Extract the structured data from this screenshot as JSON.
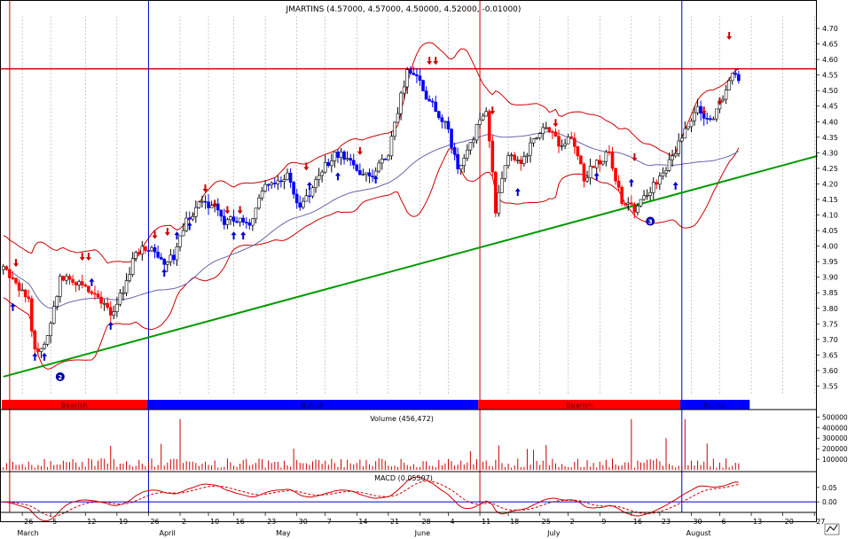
{
  "title": "JMARTINS (4.57000, 4.57000, 4.50000, 4.52000, -0.01000)",
  "volume_label": "Volume (456,472)",
  "macd_label": "MACD (0.05507)",
  "trend_bands": [
    {
      "label": "Bearish",
      "start": 0,
      "end": 46,
      "color": "#ff0000"
    },
    {
      "label": "Bullish",
      "start": 46,
      "end": 151,
      "color": "#0000ff"
    },
    {
      "label": "Bearish",
      "start": 151,
      "end": 215,
      "color": "#ff0000"
    },
    {
      "label": "Bullish",
      "start": 215,
      "end": 237,
      "color": "#0000ff"
    }
  ],
  "price_ticks": [
    "4.70",
    "4.65",
    "4.60",
    "4.55",
    "4.50",
    "4.45",
    "4.40",
    "4.35",
    "4.30",
    "4.25",
    "4.20",
    "4.15",
    "4.10",
    "4.05",
    "4.00",
    "3.95",
    "3.90",
    "3.85",
    "3.80",
    "3.75",
    "3.70",
    "3.65",
    "3.60",
    "3.55"
  ],
  "volume_ticks": [
    "500000",
    "400000",
    "300000",
    "200000",
    "100000"
  ],
  "macd_ticks": [
    "0.05",
    "0.00"
  ],
  "date_ticks": [
    {
      "label": "26",
      "i": 6
    },
    {
      "label": "5",
      "i": 15
    },
    {
      "label": "12",
      "i": 26
    },
    {
      "label": "19",
      "i": 36
    },
    {
      "label": "26",
      "i": 46
    },
    {
      "label": "2",
      "i": 56
    },
    {
      "label": "10",
      "i": 65
    },
    {
      "label": "16",
      "i": 73
    },
    {
      "label": "23",
      "i": 83
    },
    {
      "label": "30",
      "i": 93
    },
    {
      "label": "7",
      "i": 102
    },
    {
      "label": "14",
      "i": 112
    },
    {
      "label": "21",
      "i": 122
    },
    {
      "label": "28",
      "i": 132
    },
    {
      "label": "4",
      "i": 141
    },
    {
      "label": "11",
      "i": 151
    },
    {
      "label": "18",
      "i": 160
    },
    {
      "label": "25",
      "i": 170
    },
    {
      "label": "2",
      "i": 179
    },
    {
      "label": "9",
      "i": 189
    },
    {
      "label": "16",
      "i": 199
    },
    {
      "label": "23",
      "i": 208
    },
    {
      "label": "30",
      "i": 218
    },
    {
      "label": "6",
      "i": 227
    },
    {
      "label": "13",
      "i": 237
    },
    {
      "label": "20",
      "i": 247
    },
    {
      "label": "27",
      "i": 257
    }
  ],
  "month_labels": [
    {
      "label": "March",
      "i": 10
    },
    {
      "label": "April",
      "i": 55
    },
    {
      "label": "May",
      "i": 92
    },
    {
      "label": "June",
      "i": 136
    },
    {
      "label": "July",
      "i": 178
    },
    {
      "label": "August",
      "i": 222
    }
  ],
  "vertical_markers": [
    {
      "i": 2,
      "color": "#cc0000"
    },
    {
      "i": 46,
      "color": "#0000cc"
    },
    {
      "i": 151,
      "color": "#cc0000"
    },
    {
      "i": 215,
      "color": "#0000cc"
    }
  ],
  "resistance_level": 4.57,
  "wave_labels": [
    {
      "label": "2",
      "i": 18,
      "price": 3.58
    },
    {
      "label": "3",
      "i": 205,
      "price": 4.08
    }
  ],
  "colors": {
    "up": "#ffffff",
    "down": "#0000ff",
    "bearish_down": "#ff0000",
    "band": "#cc0000",
    "ma": "#6666aa",
    "trend": "#009900",
    "resistance": "#cc0000",
    "volume": "#cc0000",
    "macd": "#cc0000"
  },
  "chart_data": {
    "type": "candlestick",
    "title": "JMARTINS (4.57000, 4.57000, 4.50000, 4.52000, -0.01000)",
    "price_range": [
      3.52,
      4.74
    ],
    "note_series": [
      "bollinger_upper",
      "bollinger_lower",
      "moving_average",
      "volume",
      "macd"
    ],
    "trendline": {
      "from": {
        "i": 0,
        "price": 3.58
      },
      "to": {
        "i": 258,
        "price": 4.29
      }
    },
    "keypoints": [
      {
        "i": 0,
        "close": 3.93
      },
      {
        "i": 4,
        "close": 3.88
      },
      {
        "i": 8,
        "close": 3.82
      },
      {
        "i": 10,
        "close": 3.66
      },
      {
        "i": 14,
        "close": 3.7
      },
      {
        "i": 18,
        "close": 3.9
      },
      {
        "i": 24,
        "close": 3.88
      },
      {
        "i": 28,
        "close": 3.85
      },
      {
        "i": 34,
        "close": 3.78
      },
      {
        "i": 38,
        "close": 3.86
      },
      {
        "i": 42,
        "close": 3.98
      },
      {
        "i": 46,
        "close": 4.0
      },
      {
        "i": 50,
        "close": 3.95
      },
      {
        "i": 54,
        "close": 3.96
      },
      {
        "i": 58,
        "close": 4.08
      },
      {
        "i": 62,
        "close": 4.13
      },
      {
        "i": 66,
        "close": 4.14
      },
      {
        "i": 70,
        "close": 4.08
      },
      {
        "i": 74,
        "close": 4.09
      },
      {
        "i": 78,
        "close": 4.06
      },
      {
        "i": 82,
        "close": 4.18
      },
      {
        "i": 86,
        "close": 4.2
      },
      {
        "i": 90,
        "close": 4.23
      },
      {
        "i": 94,
        "close": 4.12
      },
      {
        "i": 98,
        "close": 4.19
      },
      {
        "i": 102,
        "close": 4.26
      },
      {
        "i": 106,
        "close": 4.3
      },
      {
        "i": 110,
        "close": 4.28
      },
      {
        "i": 114,
        "close": 4.22
      },
      {
        "i": 118,
        "close": 4.24
      },
      {
        "i": 122,
        "close": 4.3
      },
      {
        "i": 126,
        "close": 4.48
      },
      {
        "i": 128,
        "close": 4.57
      },
      {
        "i": 132,
        "close": 4.52
      },
      {
        "i": 136,
        "close": 4.45
      },
      {
        "i": 140,
        "close": 4.4
      },
      {
        "i": 144,
        "close": 4.25
      },
      {
        "i": 147,
        "close": 4.3
      },
      {
        "i": 150,
        "close": 4.38
      },
      {
        "i": 153,
        "close": 4.43
      },
      {
        "i": 156,
        "close": 4.12
      },
      {
        "i": 160,
        "close": 4.3
      },
      {
        "i": 164,
        "close": 4.26
      },
      {
        "i": 168,
        "close": 4.34
      },
      {
        "i": 172,
        "close": 4.38
      },
      {
        "i": 176,
        "close": 4.33
      },
      {
        "i": 180,
        "close": 4.35
      },
      {
        "i": 184,
        "close": 4.22
      },
      {
        "i": 188,
        "close": 4.27
      },
      {
        "i": 192,
        "close": 4.3
      },
      {
        "i": 196,
        "close": 4.14
      },
      {
        "i": 200,
        "close": 4.12
      },
      {
        "i": 204,
        "close": 4.16
      },
      {
        "i": 208,
        "close": 4.22
      },
      {
        "i": 212,
        "close": 4.28
      },
      {
        "i": 216,
        "close": 4.38
      },
      {
        "i": 220,
        "close": 4.45
      },
      {
        "i": 224,
        "close": 4.4
      },
      {
        "i": 228,
        "close": 4.48
      },
      {
        "i": 231,
        "close": 4.57
      },
      {
        "i": 233,
        "close": 4.52
      }
    ],
    "signals": {
      "up_arrows": [
        {
          "i": 3,
          "price": 3.8
        },
        {
          "i": 10,
          "price": 3.64
        },
        {
          "i": 13,
          "price": 3.64
        },
        {
          "i": 28,
          "price": 3.88
        },
        {
          "i": 34,
          "price": 3.74
        },
        {
          "i": 51,
          "price": 3.91
        },
        {
          "i": 55,
          "price": 4.03
        },
        {
          "i": 59,
          "price": 4.06
        },
        {
          "i": 73,
          "price": 4.03
        },
        {
          "i": 76,
          "price": 4.03
        },
        {
          "i": 97,
          "price": 4.19
        },
        {
          "i": 106,
          "price": 4.22
        },
        {
          "i": 118,
          "price": 4.21
        },
        {
          "i": 163,
          "price": 4.17
        },
        {
          "i": 188,
          "price": 4.22
        },
        {
          "i": 199,
          "price": 4.2
        },
        {
          "i": 213,
          "price": 4.19
        }
      ],
      "down_arrows": [
        {
          "i": 4,
          "price": 3.95
        },
        {
          "i": 25,
          "price": 3.97
        },
        {
          "i": 27,
          "price": 3.97
        },
        {
          "i": 48,
          "price": 4.04
        },
        {
          "i": 52,
          "price": 4.05
        },
        {
          "i": 64,
          "price": 4.19
        },
        {
          "i": 67,
          "price": 4.14
        },
        {
          "i": 71,
          "price": 4.12
        },
        {
          "i": 75,
          "price": 4.12
        },
        {
          "i": 96,
          "price": 4.26
        },
        {
          "i": 113,
          "price": 4.31
        },
        {
          "i": 135,
          "price": 4.6
        },
        {
          "i": 137,
          "price": 4.6
        },
        {
          "i": 155,
          "price": 4.44
        },
        {
          "i": 175,
          "price": 4.4
        },
        {
          "i": 200,
          "price": 4.29
        },
        {
          "i": 222,
          "price": 4.44
        },
        {
          "i": 227,
          "price": 4.47
        },
        {
          "i": 230,
          "price": 4.68
        }
      ]
    }
  }
}
